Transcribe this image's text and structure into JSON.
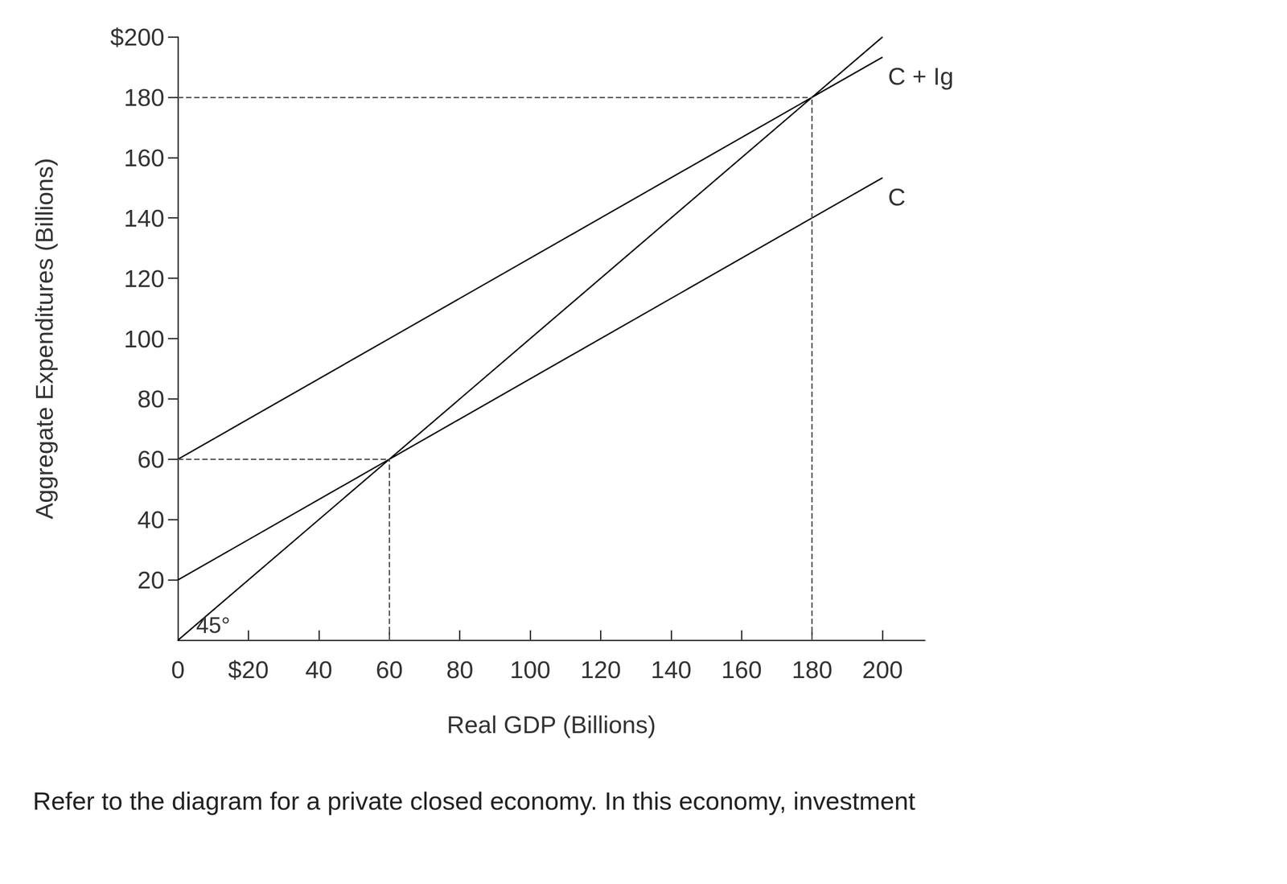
{
  "chart_data": {
    "type": "line",
    "x_label": "Real GDP (Billions)",
    "y_label": "Aggregate Expenditures (Billions)",
    "x": [
      0,
      60,
      180,
      200
    ],
    "series": [
      {
        "name": "C + Ig",
        "color": "#000000",
        "values": [
          60,
          100,
          180,
          193.3
        ]
      },
      {
        "name": "C",
        "color": "#000000",
        "values": [
          20,
          60,
          140,
          153.3
        ]
      },
      {
        "color": "#000000",
        "values": [
          0,
          60,
          180,
          200
        ]
      }
    ],
    "xlim": [
      0,
      212
    ],
    "xticks": [
      0,
      {
        "value": 20,
        "label": "$20"
      },
      40,
      60,
      80,
      100,
      120,
      140,
      160,
      180,
      200
    ],
    "ylim": [
      0,
      200
    ],
    "yticks": [
      20,
      40,
      60,
      80,
      100,
      120,
      140,
      160,
      180,
      {
        "value": 200,
        "label": "$200"
      }
    ],
    "grid": false,
    "reference_points": [
      [
        60,
        60
      ],
      [
        180,
        180
      ]
    ],
    "annotations": [
      "45°"
    ],
    "caption": "Refer to the diagram for a private closed economy. In this economy, investment"
  }
}
